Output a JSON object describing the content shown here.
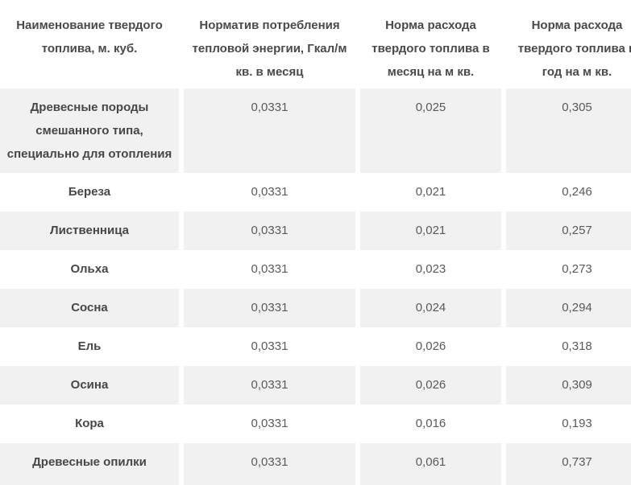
{
  "chart_data": {
    "type": "table",
    "title": "",
    "columns": [
      "Наименование твердого топлива, м. куб.",
      "Норматив потребления тепловой энергии, Гкал/м кв. в месяц",
      "Норма расхода твердого топлива в месяц на м кв.",
      "Норма расхода твердого топлива в год на м кв."
    ],
    "rows": [
      [
        "Древесные породы смешанного типа, специально для отопления",
        "0,0331",
        "0,025",
        "0,305"
      ],
      [
        "Береза",
        "0,0331",
        "0,021",
        "0,246"
      ],
      [
        "Лиственница",
        "0,0331",
        "0,021",
        "0,257"
      ],
      [
        "Ольха",
        "0,0331",
        "0,023",
        "0,273"
      ],
      [
        "Сосна",
        "0,0331",
        "0,024",
        "0,294"
      ],
      [
        "Ель",
        "0,0331",
        "0,026",
        "0,318"
      ],
      [
        "Осина",
        "0,0331",
        "0,026",
        "0,309"
      ],
      [
        "Кора",
        "0,0331",
        "0,016",
        "0,193"
      ],
      [
        "Древесные опилки",
        "0,0331",
        "0,061",
        "0,737"
      ]
    ],
    "layout": {
      "striped": true,
      "stripe_pattern": "first data row shaded, then alternating",
      "last_column_clipped_at_right_edge": true
    }
  },
  "colors": {
    "row_stripe_bg": "#f1f1f1",
    "header_text": "#4a4a4a",
    "label_text": "#474747",
    "value_text": "#5a5a5a"
  }
}
